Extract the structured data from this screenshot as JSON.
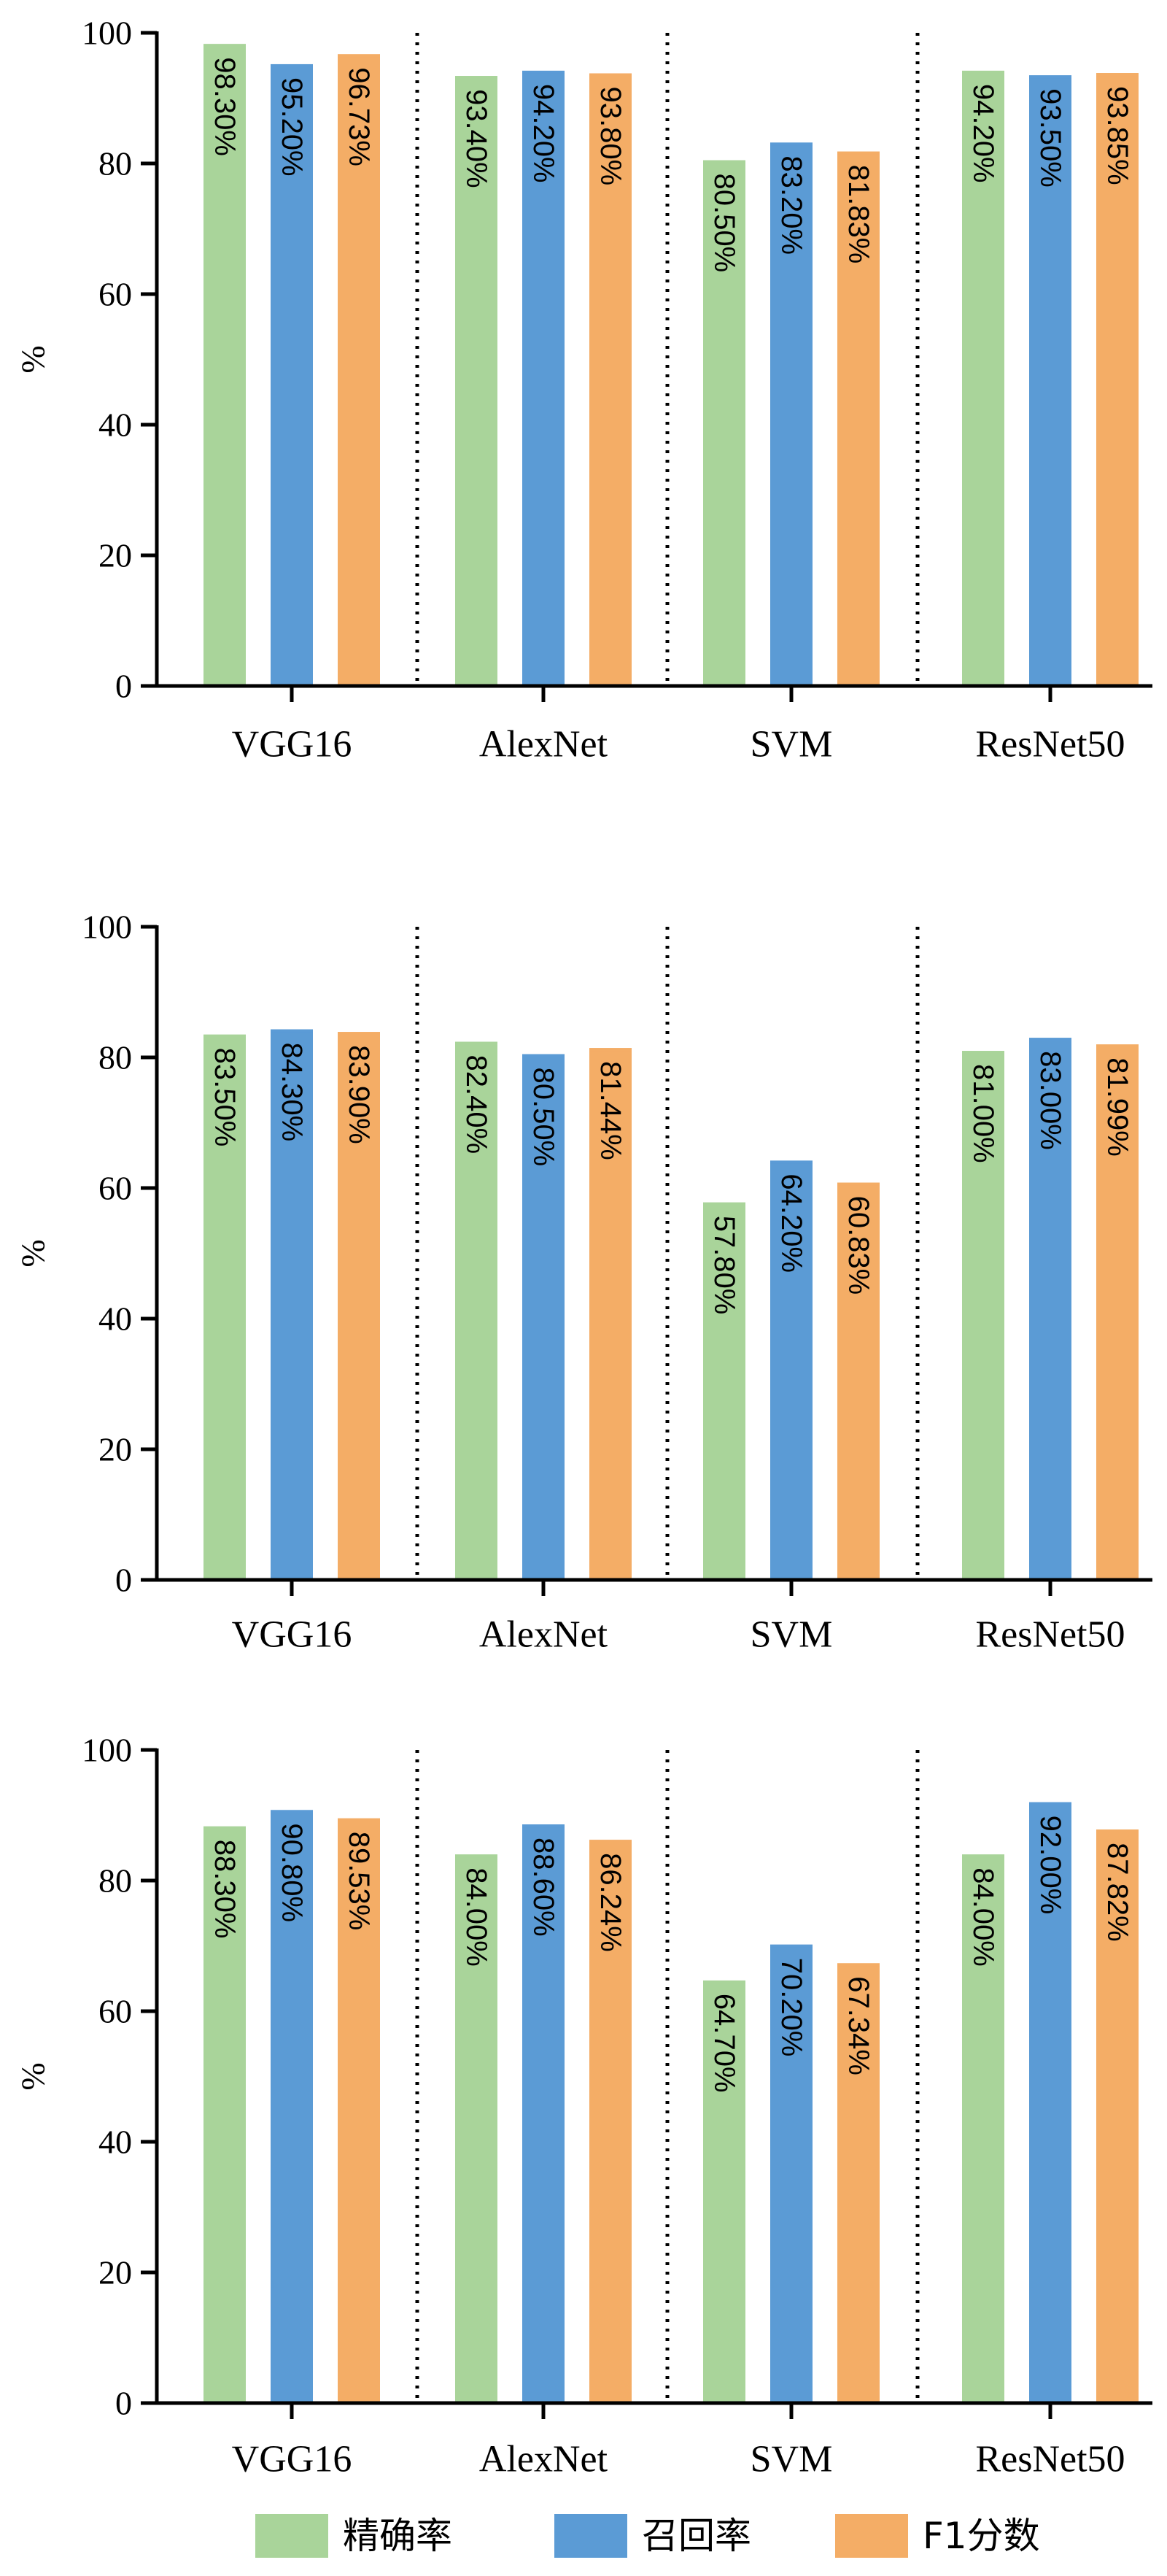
{
  "colors": {
    "precision": "#a9d49a",
    "recall": "#5b9bd5",
    "f1": "#f4ad66",
    "axis": "#000000",
    "separator": "#000000"
  },
  "legend": {
    "position": "bottom-center",
    "items": [
      {
        "label": "精确率",
        "color_key": "precision"
      },
      {
        "label": "召回率",
        "color_key": "recall"
      },
      {
        "label": "F1分数",
        "color_key": "f1"
      }
    ]
  },
  "chart_data": [
    {
      "type": "bar",
      "ylabel": "%",
      "ylim": [
        0,
        100
      ],
      "yticks": [
        0,
        20,
        40,
        60,
        80,
        100
      ],
      "categories": [
        "VGG16",
        "AlexNet",
        "SVM",
        "ResNet50"
      ],
      "series": [
        {
          "name": "精确率",
          "color_key": "precision",
          "values": [
            98.3,
            93.4,
            80.5,
            94.2
          ],
          "labels": [
            "98.30%",
            "93.40%",
            "80.50%",
            "94.20%"
          ]
        },
        {
          "name": "召回率",
          "color_key": "recall",
          "values": [
            95.2,
            94.2,
            83.2,
            93.5
          ],
          "labels": [
            "95.20%",
            "94.20%",
            "83.20%",
            "93.50%"
          ]
        },
        {
          "name": "F1分数",
          "color_key": "f1",
          "values": [
            96.73,
            93.8,
            81.83,
            93.85
          ],
          "labels": [
            "96.73%",
            "93.80%",
            "81.83%",
            "93.85%"
          ]
        }
      ],
      "grid": false,
      "group_separators": "dotted"
    },
    {
      "type": "bar",
      "ylabel": "%",
      "ylim": [
        0,
        100
      ],
      "yticks": [
        0,
        20,
        40,
        60,
        80,
        100
      ],
      "categories": [
        "VGG16",
        "AlexNet",
        "SVM",
        "ResNet50"
      ],
      "series": [
        {
          "name": "精确率",
          "color_key": "precision",
          "values": [
            83.5,
            82.4,
            57.8,
            81.0
          ],
          "labels": [
            "83.50%",
            "82.40%",
            "57.80%",
            "81.00%"
          ]
        },
        {
          "name": "召回率",
          "color_key": "recall",
          "values": [
            84.3,
            80.5,
            64.2,
            83.0
          ],
          "labels": [
            "84.30%",
            "80.50%",
            "64.20%",
            "83.00%"
          ]
        },
        {
          "name": "F1分数",
          "color_key": "f1",
          "values": [
            83.9,
            81.44,
            60.83,
            81.99
          ],
          "labels": [
            "83.90%",
            "81.44%",
            "60.83%",
            "81.99%"
          ]
        }
      ],
      "grid": false,
      "group_separators": "dotted"
    },
    {
      "type": "bar",
      "ylabel": "%",
      "ylim": [
        0,
        100
      ],
      "yticks": [
        0,
        20,
        40,
        60,
        80,
        100
      ],
      "categories": [
        "VGG16",
        "AlexNet",
        "SVM",
        "ResNet50"
      ],
      "series": [
        {
          "name": "精确率",
          "color_key": "precision",
          "values": [
            88.3,
            84.0,
            64.7,
            84.0
          ],
          "labels": [
            "88.30%",
            "84.00%",
            "64.70%",
            "84.00%"
          ]
        },
        {
          "name": "召回率",
          "color_key": "recall",
          "values": [
            90.8,
            88.6,
            70.2,
            92.0
          ],
          "labels": [
            "90.80%",
            "88.60%",
            "70.20%",
            "92.00%"
          ]
        },
        {
          "name": "F1分数",
          "color_key": "f1",
          "values": [
            89.53,
            86.24,
            67.34,
            87.82
          ],
          "labels": [
            "89.53%",
            "86.24%",
            "67.34%",
            "87.82%"
          ]
        }
      ],
      "grid": false,
      "group_separators": "dotted"
    }
  ]
}
